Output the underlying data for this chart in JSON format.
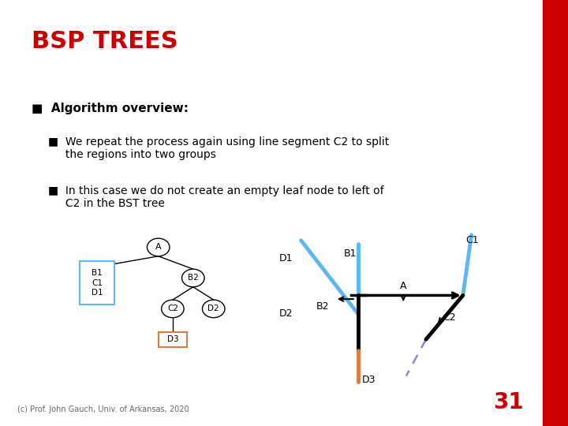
{
  "title": "BSP TREES",
  "title_color": "#CC0000",
  "title_fontsize": 22,
  "background_color": "#ffffff",
  "red_bar_color": "#CC0000",
  "text_color": "#000000",
  "footer": "(c) Prof. John Gauch, Univ. of Arkansas, 2020",
  "page_num": "31",
  "bullet1_header": "■  Algorithm overview:",
  "bullet2_text": "■  We repeat the process again using line segment C2 to split\n     the regions into two groups",
  "bullet3_text": "■  In this case we do not create an empty leaf node to left of\n     C2 in the BST tree",
  "blue_color": "#5BB8F5",
  "orange_color": "#E07B39",
  "dashed_color": "#8888CC",
  "node_border": "#000000",
  "blue_rect_color": "#5BB8F5",
  "orange_rect_color": "#E07B39"
}
